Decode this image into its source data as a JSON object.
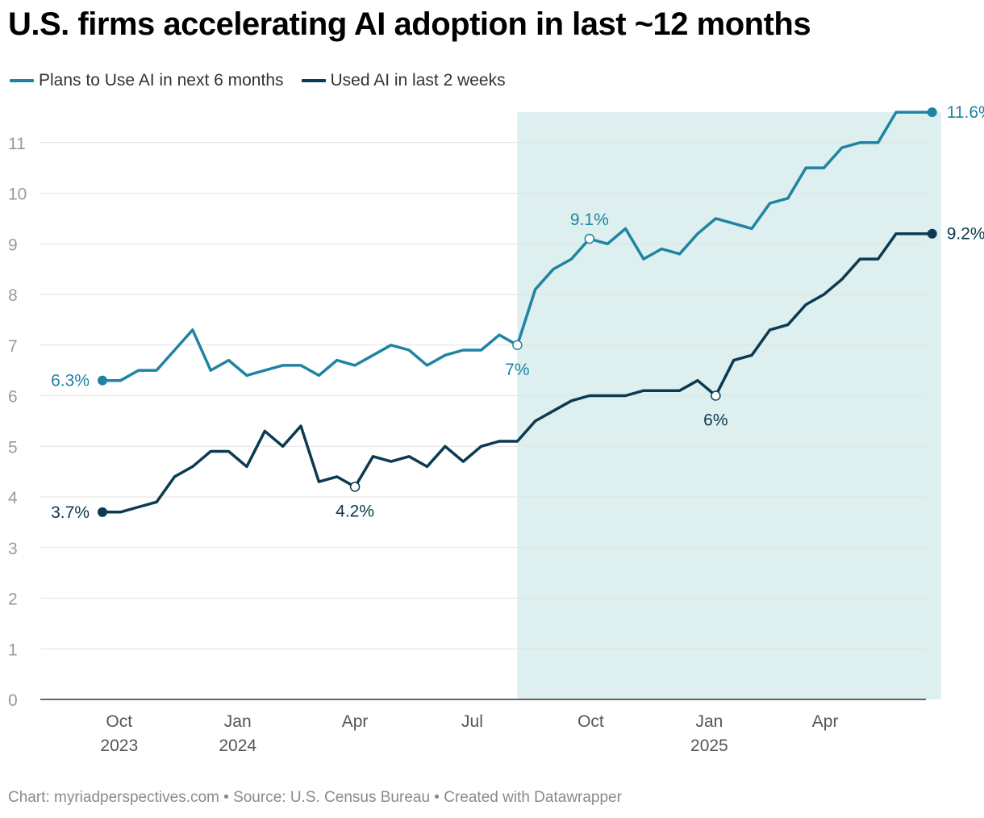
{
  "chart_data": {
    "type": "line",
    "title": "U.S. firms accelerating AI adoption in last ~12 months",
    "y_ticks": [
      "0",
      "1",
      "2",
      "3",
      "4",
      "5",
      "6",
      "7",
      "8",
      "9",
      "10",
      "11"
    ],
    "ylim": [
      0,
      11.6
    ],
    "grid": true,
    "legend_position": "top-left",
    "x_ticks": [
      {
        "label": "Oct",
        "sub": "2023",
        "date": "2023-10-01"
      },
      {
        "label": "Jan",
        "sub": "2024",
        "date": "2024-01-01"
      },
      {
        "label": "Apr",
        "sub": "",
        "date": "2024-04-01"
      },
      {
        "label": "Jul",
        "sub": "",
        "date": "2024-07-01"
      },
      {
        "label": "Oct",
        "sub": "",
        "date": "2024-10-01"
      },
      {
        "label": "Jan",
        "sub": "2025",
        "date": "2025-01-01"
      },
      {
        "label": "Apr",
        "sub": "",
        "date": "2025-04-01"
      }
    ],
    "highlight_range": [
      "2024-08-05",
      "2025-06-30"
    ],
    "x": [
      "2023-09-18",
      "2023-10-02",
      "2023-10-16",
      "2023-10-30",
      "2023-11-13",
      "2023-11-27",
      "2023-12-11",
      "2023-12-25",
      "2024-01-08",
      "2024-01-22",
      "2024-02-05",
      "2024-02-19",
      "2024-03-04",
      "2024-03-18",
      "2024-04-01",
      "2024-04-15",
      "2024-04-29",
      "2024-05-13",
      "2024-05-27",
      "2024-06-10",
      "2024-06-24",
      "2024-07-08",
      "2024-07-22",
      "2024-08-05",
      "2024-08-19",
      "2024-09-02",
      "2024-09-16",
      "2024-09-30",
      "2024-10-14",
      "2024-10-28",
      "2024-11-11",
      "2024-11-25",
      "2024-12-09",
      "2024-12-23",
      "2025-01-06",
      "2025-01-20",
      "2025-02-03",
      "2025-02-17",
      "2025-03-03",
      "2025-03-17",
      "2025-03-31",
      "2025-04-14",
      "2025-04-28",
      "2025-05-12",
      "2025-05-26",
      "2025-06-09",
      "2025-06-23"
    ],
    "series": [
      {
        "name": "Plans to Use AI in next 6 months",
        "color": "#1f84a3",
        "values": [
          6.3,
          6.3,
          6.5,
          6.5,
          6.9,
          7.3,
          6.5,
          6.7,
          6.4,
          6.5,
          6.6,
          6.6,
          6.4,
          6.7,
          6.6,
          6.8,
          7.0,
          6.9,
          6.6,
          6.8,
          6.9,
          6.9,
          7.2,
          7.0,
          8.1,
          8.5,
          8.7,
          9.1,
          9.0,
          9.3,
          8.7,
          8.9,
          8.8,
          9.2,
          9.5,
          9.4,
          9.3,
          9.8,
          9.9,
          10.5,
          10.5,
          10.9,
          11.0,
          11.0,
          11.6,
          11.6,
          11.6
        ]
      },
      {
        "name": "Used AI in last 2 weeks",
        "color": "#0c3a53",
        "values": [
          3.7,
          3.7,
          3.8,
          3.9,
          4.4,
          4.6,
          4.9,
          4.9,
          4.6,
          5.3,
          5.0,
          5.4,
          4.3,
          4.4,
          4.2,
          4.8,
          4.7,
          4.8,
          4.6,
          5.0,
          4.7,
          5.0,
          5.1,
          5.1,
          5.5,
          5.7,
          5.9,
          6.0,
          6.0,
          6.0,
          6.1,
          6.1,
          6.1,
          6.3,
          6.0,
          6.7,
          6.8,
          7.3,
          7.4,
          7.8,
          8.0,
          8.3,
          8.7,
          8.7,
          9.2,
          9.2,
          9.2
        ]
      }
    ],
    "annotations": [
      {
        "series": 0,
        "date": "2023-09-18",
        "value": 6.3,
        "text": "6.3%",
        "kind": "start"
      },
      {
        "series": 0,
        "date": "2024-08-05",
        "value": 7.0,
        "text": "7%",
        "kind": "below"
      },
      {
        "series": 0,
        "date": "2024-09-30",
        "value": 9.1,
        "text": "9.1%",
        "kind": "above"
      },
      {
        "series": 0,
        "date": "2025-06-23",
        "value": 11.6,
        "text": "11.6%",
        "kind": "end"
      },
      {
        "series": 1,
        "date": "2023-09-18",
        "value": 3.7,
        "text": "3.7%",
        "kind": "start"
      },
      {
        "series": 1,
        "date": "2024-04-01",
        "value": 4.2,
        "text": "4.2%",
        "kind": "below"
      },
      {
        "series": 1,
        "date": "2025-01-06",
        "value": 6.0,
        "text": "6%",
        "kind": "below"
      },
      {
        "series": 1,
        "date": "2025-06-23",
        "value": 9.2,
        "text": "9.2%",
        "kind": "end"
      }
    ]
  },
  "footer": "Chart: myriadperspectives.com • Source: U.S. Census Bureau • Created with Datawrapper"
}
